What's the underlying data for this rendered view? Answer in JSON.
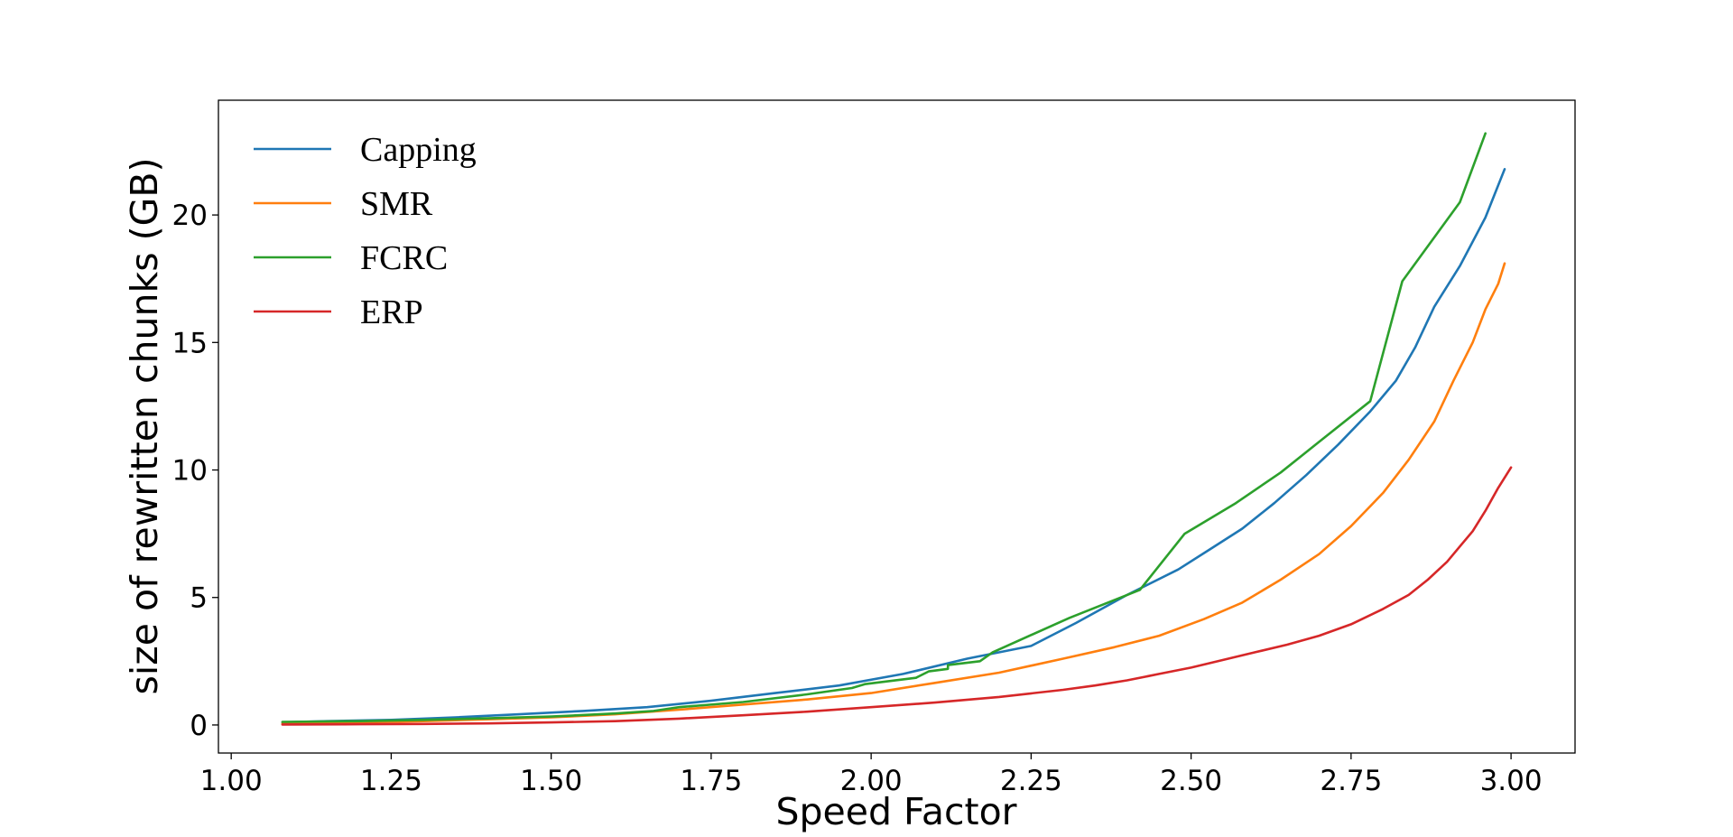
{
  "chart_data": {
    "type": "line",
    "title": "",
    "xlabel": "Speed Factor",
    "ylabel": "size of rewritten chunks (GB)",
    "xlim": [
      0.98,
      3.1
    ],
    "ylim": [
      -1.1,
      24.5
    ],
    "xticks": [
      "1.00",
      "1.25",
      "1.50",
      "1.75",
      "2.00",
      "2.25",
      "2.50",
      "2.75",
      "3.00"
    ],
    "yticks": [
      "0",
      "5",
      "10",
      "15",
      "20"
    ],
    "grid": false,
    "legend_position": "top-left",
    "series": [
      {
        "name": "Capping",
        "color": "#1f77b4",
        "x": [
          1.08,
          1.15,
          1.25,
          1.35,
          1.45,
          1.55,
          1.65,
          1.75,
          1.85,
          1.95,
          2.05,
          2.15,
          2.25,
          2.32,
          2.4,
          2.48,
          2.53,
          2.58,
          2.63,
          2.68,
          2.73,
          2.78,
          2.82,
          2.85,
          2.88,
          2.92,
          2.96,
          2.99
        ],
        "y": [
          0.1,
          0.15,
          0.2,
          0.3,
          0.42,
          0.55,
          0.7,
          0.95,
          1.25,
          1.55,
          2.0,
          2.6,
          3.1,
          4.0,
          5.1,
          6.1,
          6.9,
          7.7,
          8.7,
          9.8,
          11.0,
          12.3,
          13.5,
          14.8,
          16.4,
          18.0,
          19.9,
          21.8
        ]
      },
      {
        "name": "SMR",
        "color": "#ff7f0e",
        "x": [
          1.08,
          1.2,
          1.3,
          1.4,
          1.5,
          1.6,
          1.7,
          1.8,
          1.9,
          2.0,
          2.1,
          2.2,
          2.3,
          2.38,
          2.45,
          2.52,
          2.58,
          2.64,
          2.7,
          2.75,
          2.8,
          2.84,
          2.88,
          2.91,
          2.94,
          2.96,
          2.98,
          2.99
        ],
        "y": [
          0.05,
          0.1,
          0.15,
          0.22,
          0.3,
          0.42,
          0.6,
          0.8,
          1.0,
          1.25,
          1.65,
          2.05,
          2.6,
          3.05,
          3.5,
          4.15,
          4.8,
          5.7,
          6.7,
          7.8,
          9.1,
          10.4,
          11.9,
          13.5,
          15.0,
          16.3,
          17.3,
          18.1
        ]
      },
      {
        "name": "FCRC",
        "color": "#2ca02c",
        "x": [
          1.08,
          1.2,
          1.3,
          1.4,
          1.5,
          1.6,
          1.66,
          1.7,
          1.8,
          1.9,
          1.97,
          1.99,
          2.07,
          2.09,
          2.12,
          2.12,
          2.17,
          2.19,
          2.31,
          2.42,
          2.49,
          2.57,
          2.64,
          2.7,
          2.78,
          2.83,
          2.92,
          2.96
        ],
        "y": [
          0.12,
          0.15,
          0.2,
          0.26,
          0.33,
          0.45,
          0.55,
          0.7,
          0.9,
          1.2,
          1.45,
          1.6,
          1.85,
          2.1,
          2.2,
          2.35,
          2.5,
          2.85,
          4.2,
          5.3,
          7.5,
          8.7,
          9.9,
          11.1,
          12.7,
          17.4,
          20.5,
          23.2
        ]
      },
      {
        "name": "ERP",
        "color": "#d62728",
        "x": [
          1.08,
          1.2,
          1.3,
          1.4,
          1.5,
          1.6,
          1.7,
          1.8,
          1.9,
          2.0,
          2.1,
          2.2,
          2.3,
          2.35,
          2.4,
          2.45,
          2.5,
          2.55,
          2.6,
          2.65,
          2.7,
          2.75,
          2.8,
          2.84,
          2.87,
          2.9,
          2.92,
          2.94,
          2.96,
          2.98,
          3.0
        ],
        "y": [
          0.02,
          0.03,
          0.04,
          0.06,
          0.1,
          0.15,
          0.25,
          0.38,
          0.52,
          0.7,
          0.88,
          1.1,
          1.38,
          1.55,
          1.75,
          2.0,
          2.25,
          2.55,
          2.85,
          3.15,
          3.5,
          3.95,
          4.55,
          5.1,
          5.7,
          6.4,
          7.0,
          7.6,
          8.4,
          9.3,
          10.1
        ]
      }
    ]
  }
}
